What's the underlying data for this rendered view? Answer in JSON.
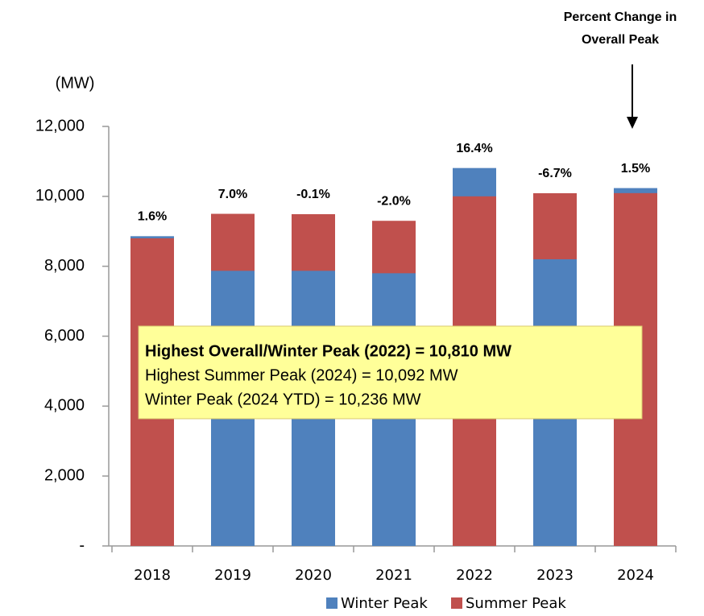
{
  "chart_data": {
    "type": "overlap_bar",
    "title_lines": [
      "Percent Change in",
      "Overall Peak"
    ],
    "y_axis_label": "(MW)",
    "categories": [
      "2018",
      "2019",
      "2020",
      "2021",
      "2022",
      "2023",
      "2024"
    ],
    "series": [
      {
        "name": "Winter Peak",
        "color": "#4f81bd",
        "values": [
          8860,
          7870,
          7870,
          7800,
          10810,
          8200,
          10236
        ]
      },
      {
        "name": "Summer Peak",
        "color": "#c0504d",
        "values": [
          8800,
          9500,
          9490,
          9300,
          10000,
          10090,
          10092
        ]
      }
    ],
    "percent_labels": [
      "1.6%",
      "7.0%",
      "-0.1%",
      "-2.0%",
      "16.4%",
      "-6.7%",
      "1.5%"
    ],
    "ylim": [
      0,
      12000
    ],
    "yticks": [
      {
        "value": 0,
        "label": "-"
      },
      {
        "value": 2000,
        "label": "2,000"
      },
      {
        "value": 4000,
        "label": "4,000"
      },
      {
        "value": 6000,
        "label": "6,000"
      },
      {
        "value": 8000,
        "label": "8,000"
      },
      {
        "value": 10000,
        "label": "10,000"
      },
      {
        "value": 12000,
        "label": "12,000"
      }
    ],
    "annotation_lines": [
      "Highest Overall/Winter Peak (2022) = 10,810 MW",
      "Highest Summer Peak (2024) = 10,092 MW",
      "Winter Peak (2024 YTD) = 10,236 MW"
    ],
    "legend": "bottom"
  }
}
